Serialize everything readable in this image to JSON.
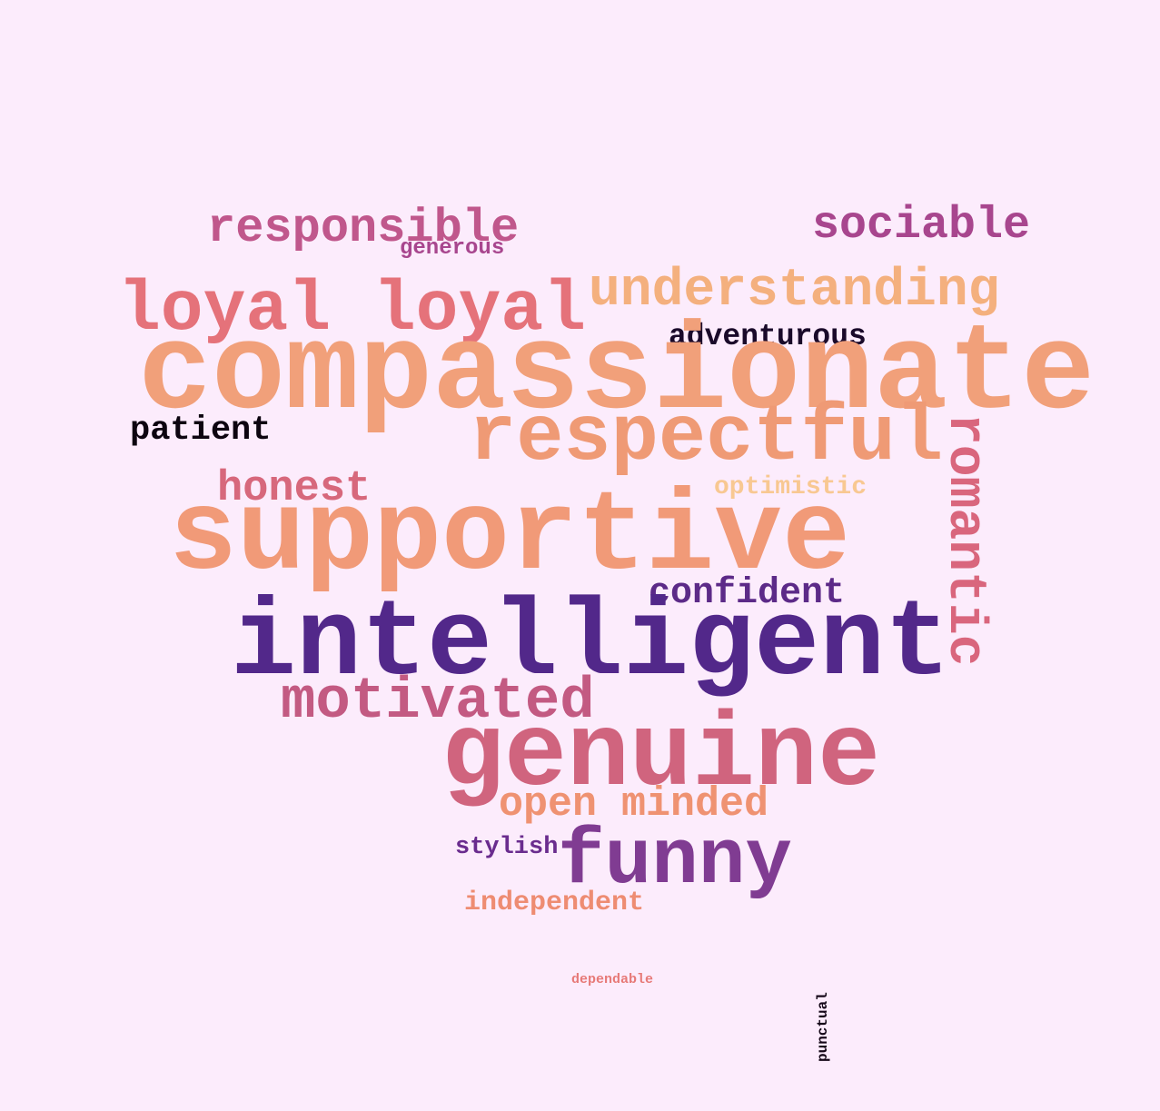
{
  "cloud": {
    "words": [
      {
        "id": "w-responsible",
        "text": "responsible",
        "color": "#c0578c"
      },
      {
        "id": "w-generous",
        "text": "generous",
        "color": "#a8468e"
      },
      {
        "id": "w-sociable",
        "text": "sociable",
        "color": "#a8468e"
      },
      {
        "id": "w-understanding",
        "text": "understanding",
        "color": "#f4b07e"
      },
      {
        "id": "w-loyal",
        "text": "loyal loyal",
        "color": "#e5727a"
      },
      {
        "id": "w-adventurous",
        "text": "adventurous",
        "color": "#1a0a2a"
      },
      {
        "id": "w-compassionate",
        "text": "compassionate",
        "color": "#f1a07a"
      },
      {
        "id": "w-patient",
        "text": "patient",
        "color": "#0d0510"
      },
      {
        "id": "w-respectful",
        "text": "respectful",
        "color": "#ef9a75"
      },
      {
        "id": "w-romantic",
        "text": "romantic",
        "color": "#d9667d"
      },
      {
        "id": "w-honest",
        "text": "honest",
        "color": "#d7687c"
      },
      {
        "id": "w-optimistic",
        "text": "optimistic",
        "color": "#f8c892"
      },
      {
        "id": "w-supportive",
        "text": "supportive",
        "color": "#f19a78"
      },
      {
        "id": "w-confident",
        "text": "confident",
        "color": "#5c2a88"
      },
      {
        "id": "w-intelligent",
        "text": "intelligent",
        "color": "#52288a"
      },
      {
        "id": "w-motivated",
        "text": "motivated",
        "color": "#c35a82"
      },
      {
        "id": "w-genuine",
        "text": "genuine",
        "color": "#d0647e"
      },
      {
        "id": "w-openminded",
        "text": "open minded",
        "color": "#ef9272"
      },
      {
        "id": "w-stylish",
        "text": "stylish",
        "color": "#6a2c8e"
      },
      {
        "id": "w-funny",
        "text": "funny",
        "color": "#803c92"
      },
      {
        "id": "w-independent",
        "text": "independent",
        "color": "#ee8c72"
      },
      {
        "id": "w-dependable",
        "text": "dependable",
        "color": "#e77a78"
      },
      {
        "id": "w-punctual",
        "text": "punctual",
        "color": "#150818"
      }
    ]
  }
}
